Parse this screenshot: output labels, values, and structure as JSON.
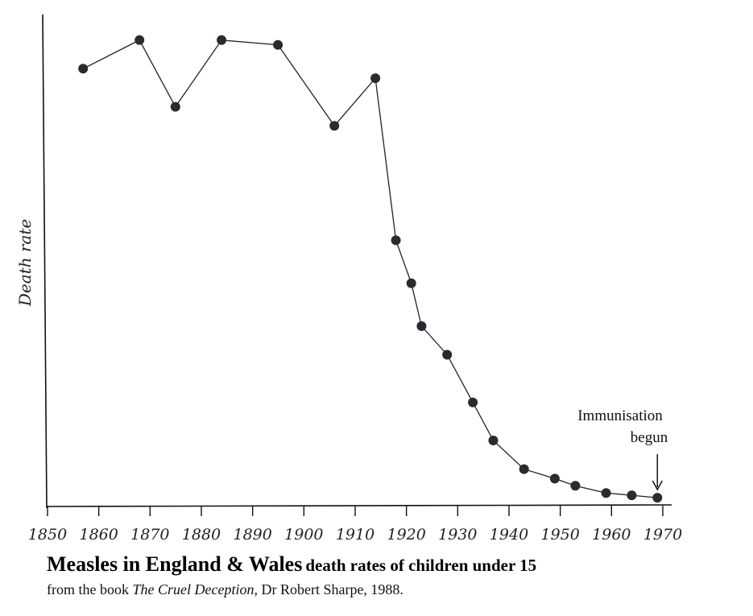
{
  "chart_data": {
    "type": "line",
    "title": "Measles in England & Wales",
    "subtitle": "death rates of children under 15",
    "xlabel": "",
    "ylabel": "Death rate",
    "xlim": [
      1850,
      1970
    ],
    "ylim": [
      0,
      100
    ],
    "x_ticks": [
      "1850",
      "1860",
      "1870",
      "1880",
      "1890",
      "1900",
      "1910",
      "1920",
      "1930",
      "1940",
      "1950",
      "1960",
      "1970"
    ],
    "grid": false,
    "marker": "filled-circle",
    "series": [
      {
        "x": [
          1856,
          1867,
          1874,
          1883,
          1894,
          1905,
          1913,
          1917,
          1920,
          1922,
          1927,
          1932,
          1936,
          1942,
          1948,
          1952,
          1958,
          1963,
          1968
        ],
        "values": [
          91,
          97,
          83,
          97,
          96,
          79,
          89,
          55,
          46,
          37,
          31,
          21,
          13,
          7,
          5,
          3.5,
          2,
          1.5,
          1
        ]
      }
    ],
    "annotations": [
      {
        "text_line1": "Immunisation",
        "text_line2": "begun",
        "x": 1968
      }
    ],
    "source": {
      "prefix": "from the book",
      "book": "The Cruel Deception,",
      "suffix": "Dr Robert Sharpe, 1988."
    }
  }
}
